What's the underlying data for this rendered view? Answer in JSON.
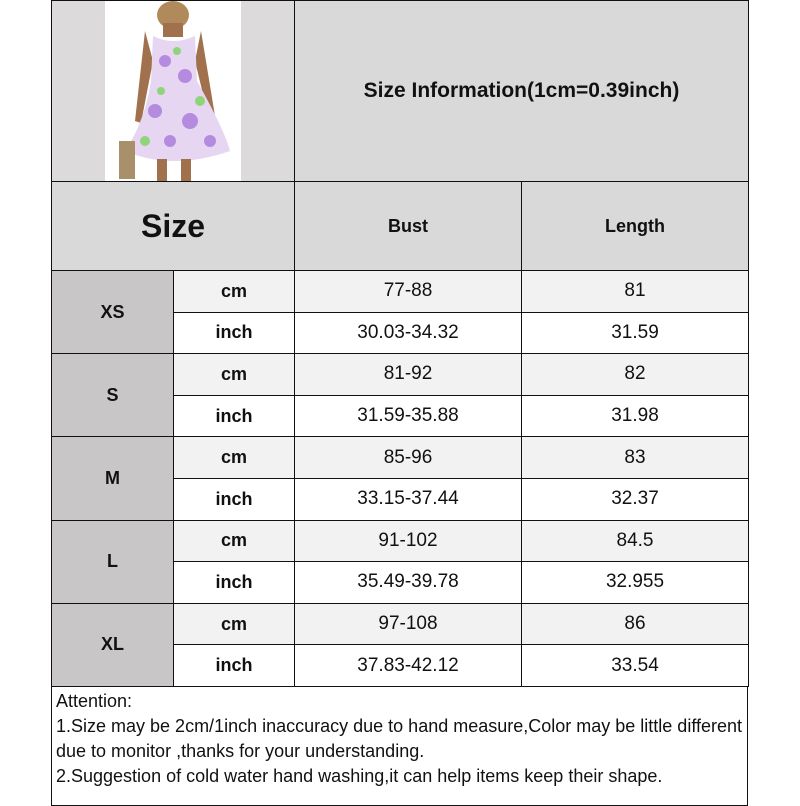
{
  "title": "Size Information(1cm=0.39inch)",
  "size_header": "Size",
  "columns": [
    "Bust",
    "Length"
  ],
  "rows": [
    {
      "size": "XS",
      "cm": {
        "unit": "cm",
        "bust": "77-88",
        "length": "81"
      },
      "inch": {
        "unit": "inch",
        "bust": "30.03-34.32",
        "length": "31.59"
      }
    },
    {
      "size": "S",
      "cm": {
        "unit": "cm",
        "bust": "81-92",
        "length": "82"
      },
      "inch": {
        "unit": "inch",
        "bust": "31.59-35.88",
        "length": "31.98"
      }
    },
    {
      "size": "M",
      "cm": {
        "unit": "cm",
        "bust": "85-96",
        "length": "83"
      },
      "inch": {
        "unit": "inch",
        "bust": "33.15-37.44",
        "length": "32.37"
      }
    },
    {
      "size": "L",
      "cm": {
        "unit": "cm",
        "bust": "91-102",
        "length": "84.5"
      },
      "inch": {
        "unit": "inch",
        "bust": "35.49-39.78",
        "length": "32.955"
      }
    },
    {
      "size": "XL",
      "cm": {
        "unit": "cm",
        "bust": "97-108",
        "length": "86"
      },
      "inch": {
        "unit": "inch",
        "bust": "37.83-42.12",
        "length": "33.54"
      }
    }
  ],
  "attention": {
    "heading": "Attention:",
    "notes": [
      "1.Size may be 2cm/1inch inaccuracy due to hand measure,Color may be little different due to monitor ,thanks for your understanding.",
      "2.Suggestion of cold water hand washing,it can help items keep their shape."
    ]
  }
}
